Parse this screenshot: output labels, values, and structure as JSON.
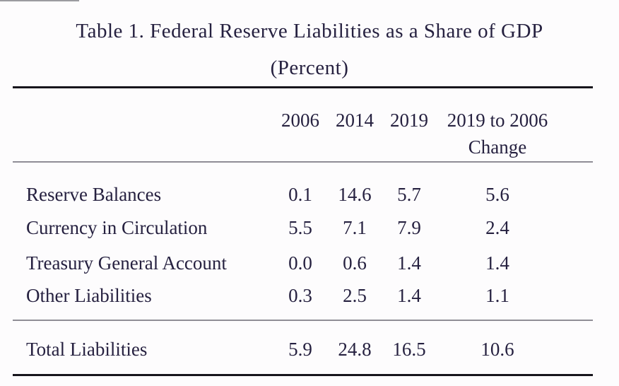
{
  "page": {
    "background": "#fdfcfd",
    "text_color": "#262140",
    "rule_dark_color": "#17151c",
    "rule_gray_color": "#8f8d96"
  },
  "table": {
    "title": "Table 1. Federal Reserve Liabilities as a Share of GDP",
    "subtitle": "(Percent)",
    "header": {
      "col_2006": "2006",
      "col_2014": "2014",
      "col_2019": "2019",
      "change_line1": "2019 to 2006",
      "change_line2": "Change"
    },
    "rows": [
      {
        "label": "Reserve Balances",
        "values": [
          "0.1",
          "14.6",
          "5.7",
          "5.6"
        ]
      },
      {
        "label": "Currency in Circulation",
        "values": [
          "5.5",
          "7.1",
          "7.9",
          "2.4"
        ]
      },
      {
        "label": "Treasury General Account",
        "values": [
          "0.0",
          "0.6",
          "1.4",
          "1.4"
        ]
      },
      {
        "label": "Other Liabilities",
        "values": [
          "0.3",
          "2.5",
          "1.4",
          "1.1"
        ]
      }
    ],
    "total_row": {
      "label": "Total Liabilities",
      "values": [
        "5.9",
        "24.8",
        "16.5",
        "10.6"
      ]
    }
  },
  "chart_data": {
    "type": "table",
    "title": "Table 1. Federal Reserve Liabilities as a Share of GDP",
    "subtitle": "(Percent)",
    "columns": [
      "",
      "2006",
      "2014",
      "2019",
      "2019 to 2006 Change"
    ],
    "rows": [
      [
        "Reserve Balances",
        0.1,
        14.6,
        5.7,
        5.6
      ],
      [
        "Currency in Circulation",
        5.5,
        7.1,
        7.9,
        2.4
      ],
      [
        "Treasury General Account",
        0.0,
        0.6,
        1.4,
        1.4
      ],
      [
        "Other Liabilities",
        0.3,
        2.5,
        1.4,
        1.1
      ],
      [
        "Total Liabilities",
        5.9,
        24.8,
        16.5,
        10.6
      ]
    ]
  }
}
